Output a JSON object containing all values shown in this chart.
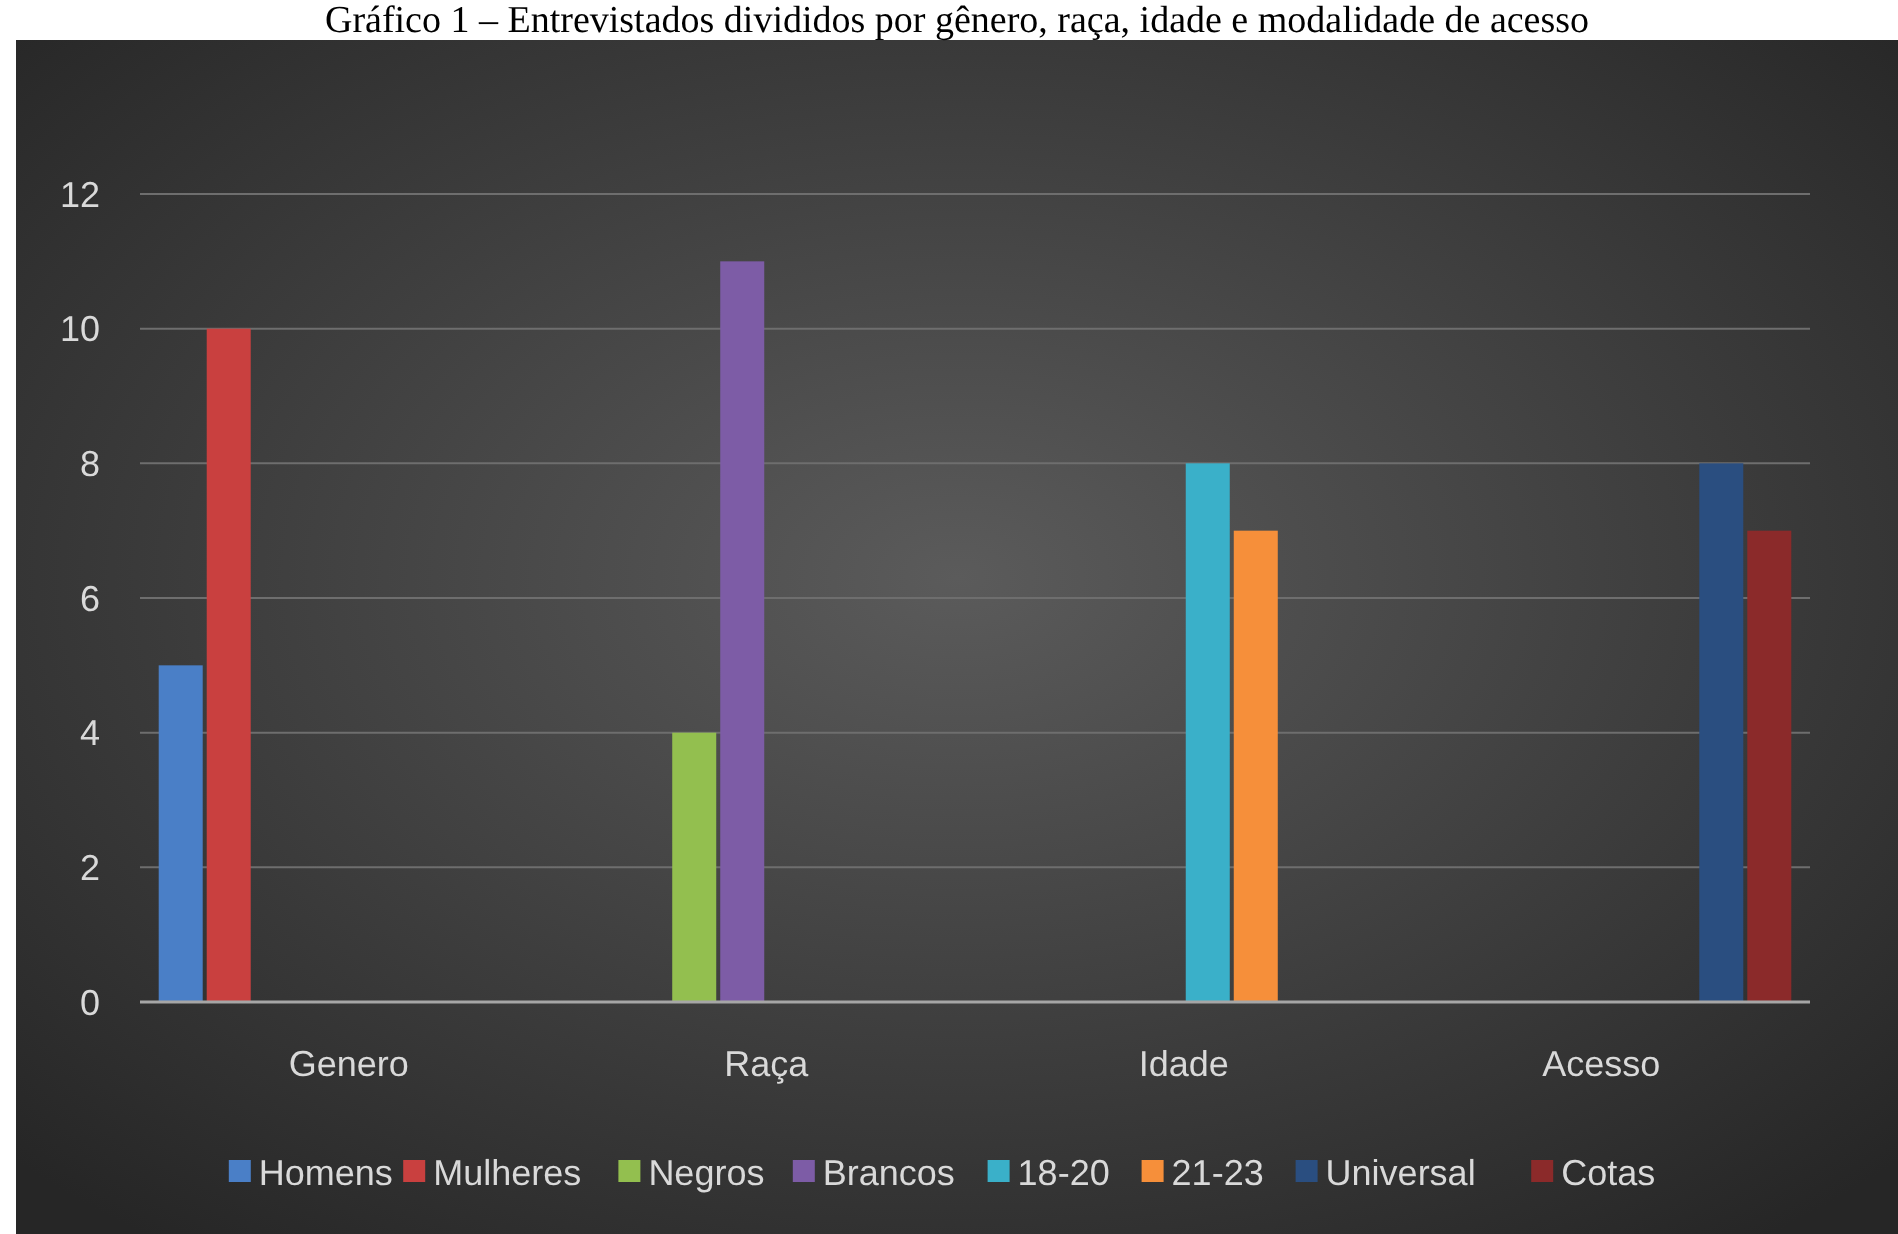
{
  "chart_data": {
    "type": "bar",
    "title": "Gráfico 1 – Entrevistados divididos por gênero, raça, idade e modalidade de acesso",
    "categories": [
      "Genero",
      "Raça",
      "Idade",
      "Acesso"
    ],
    "series": [
      {
        "name": "Homens",
        "color": "#4a7fc7",
        "values": [
          5,
          null,
          null,
          null
        ]
      },
      {
        "name": "Mulheres",
        "color": "#c9403f",
        "values": [
          10,
          null,
          null,
          null
        ]
      },
      {
        "name": "Negros",
        "color": "#93bf4f",
        "values": [
          null,
          4,
          null,
          null
        ]
      },
      {
        "name": "Brancos",
        "color": "#7d5ca6",
        "values": [
          null,
          11,
          null,
          null
        ]
      },
      {
        "name": "18-20",
        "color": "#3ab0c9",
        "values": [
          null,
          null,
          8,
          null
        ]
      },
      {
        "name": "21-23",
        "color": "#f68f3a",
        "values": [
          null,
          null,
          7,
          null
        ]
      },
      {
        "name": "Universal",
        "color": "#2a4e80",
        "values": [
          null,
          null,
          null,
          8
        ]
      },
      {
        "name": "Cotas",
        "color": "#8b2a2a",
        "values": [
          null,
          null,
          null,
          7
        ]
      }
    ],
    "ylim": [
      0,
      12
    ],
    "yticks": [
      0,
      2,
      4,
      6,
      8,
      10,
      12
    ],
    "grid": "y",
    "legend": "bottom"
  }
}
